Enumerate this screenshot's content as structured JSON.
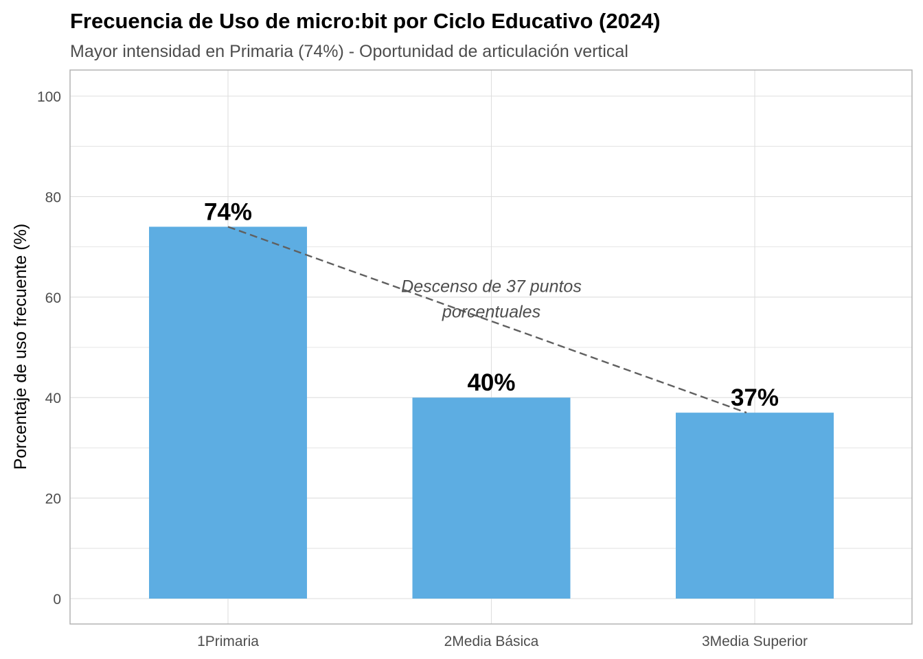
{
  "chart_data": {
    "type": "bar",
    "title": "Frecuencia de Uso de micro:bit por Ciclo Educativo (2024)",
    "subtitle": "Mayor intensidad en Primaria (74%) - Oportunidad de articulación vertical",
    "xlabel": "",
    "ylabel": "Porcentaje de uso frecuente (%)",
    "categories": [
      "1Primaria",
      "2Media Básica",
      "3Media Superior"
    ],
    "values": [
      74,
      40,
      37
    ],
    "data_labels": [
      "74%",
      "40%",
      "37%"
    ],
    "ylim": [
      0,
      100
    ],
    "yticks": [
      0,
      20,
      40,
      60,
      80,
      100
    ],
    "grid": true,
    "trend_line": {
      "from_category": "1Primaria",
      "from_value": 74,
      "to_category": "3Media Superior",
      "to_value": 37,
      "style": "dashed"
    },
    "annotation": {
      "lines": [
        "Descenso de 37 puntos",
        "porcentuales"
      ],
      "category": "2Media Básica",
      "value": 61
    },
    "colors": {
      "bar": "#5DADE2",
      "trend": "#606060",
      "annotation": "#4D4D4D",
      "grid": "#DEDEDE",
      "border": "#B3B3B3",
      "tick_text": "#4D4D4D",
      "label_text": "#000000"
    }
  }
}
